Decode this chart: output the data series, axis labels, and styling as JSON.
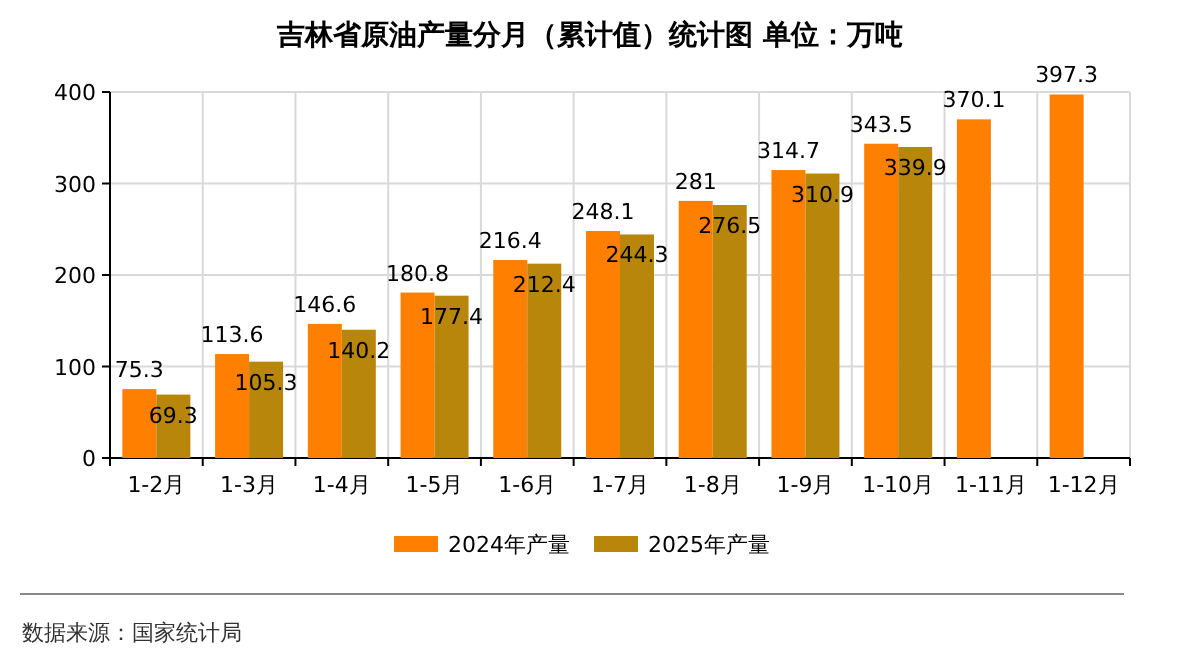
{
  "chart_data": {
    "type": "bar",
    "title": "吉林省原油产量分月（累计值）统计图  单位：万吨",
    "categories": [
      "1-2月",
      "1-3月",
      "1-4月",
      "1-5月",
      "1-6月",
      "1-7月",
      "1-8月",
      "1-9月",
      "1-10月",
      "1-11月",
      "1-12月"
    ],
    "series": [
      {
        "name": "2024年产量",
        "color": "#ff8000",
        "values": [
          75.3,
          113.6,
          146.6,
          180.8,
          216.4,
          248.1,
          281,
          314.7,
          343.5,
          370.1,
          397.3
        ]
      },
      {
        "name": "2025年产量",
        "color": "#b8860b",
        "values": [
          69.3,
          105.3,
          140.2,
          177.4,
          212.4,
          244.3,
          276.5,
          310.9,
          339.9,
          null,
          null
        ]
      }
    ],
    "ylim": [
      0,
      400
    ],
    "yticks": [
      0,
      100,
      200,
      300,
      400
    ],
    "grid": true,
    "legend": "bottom",
    "data_labels": true,
    "annotations": [
      "数据来源：国家统计局"
    ]
  }
}
